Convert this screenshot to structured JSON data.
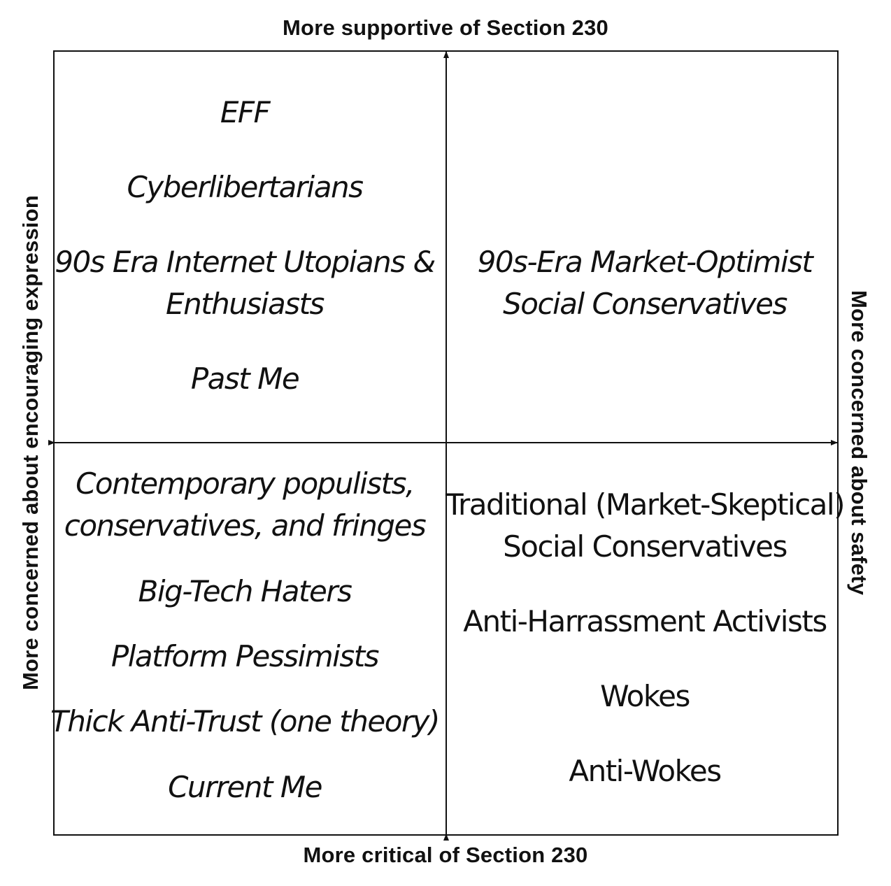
{
  "axes": {
    "top": "More supportive of Section 230",
    "bottom": "More critical of Section 230",
    "left": "More concerned about encouraging expression",
    "right": "More concerned about safety"
  },
  "quadrants": {
    "top_left": {
      "items": [
        {
          "lines": [
            "EFF"
          ]
        },
        {
          "lines": [
            "Cyberlibertarians"
          ]
        },
        {
          "lines": [
            "90s Era Internet Utopians &",
            "Enthusiasts"
          ]
        },
        {
          "lines": [
            "Past Me"
          ]
        }
      ]
    },
    "top_right": {
      "items": [
        {
          "lines": [
            "90s-Era Market-Optimist",
            "Social Conservatives"
          ]
        }
      ]
    },
    "bottom_left": {
      "items": [
        {
          "lines": [
            "Contemporary populists,",
            "conservatives, and fringes"
          ]
        },
        {
          "lines": [
            "Big-Tech Haters"
          ]
        },
        {
          "lines": [
            "Platform Pessimists"
          ]
        },
        {
          "lines": [
            "Thick Anti-Trust (one theory)"
          ]
        },
        {
          "lines": [
            "Current Me"
          ]
        }
      ]
    },
    "bottom_right": {
      "items": [
        {
          "lines": [
            "Traditional (Market-Skeptical)",
            "Social Conservatives"
          ]
        },
        {
          "lines": [
            "Anti-Harrassment Activists"
          ]
        },
        {
          "lines": [
            "Wokes"
          ]
        },
        {
          "lines": [
            "Anti-Wokes"
          ]
        }
      ]
    }
  }
}
